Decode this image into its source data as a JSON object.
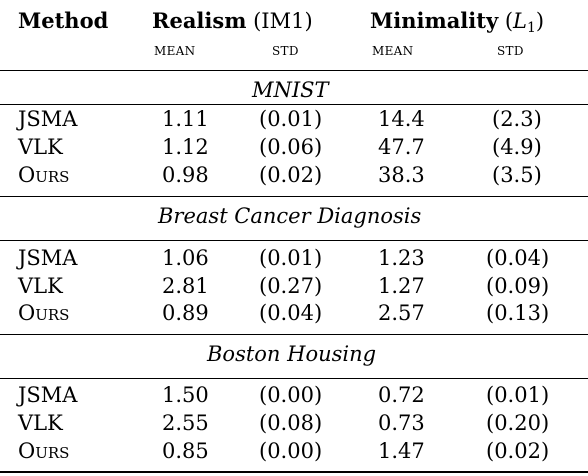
{
  "header": {
    "method": "Method",
    "realism": "Realism",
    "realism_metric": "(IM1)",
    "minimality": "Minimality",
    "minimality_metric_open": "(",
    "minimality_metric_L": "L",
    "minimality_metric_sub": "1",
    "minimality_metric_close": ")",
    "sub": [
      "mean",
      "std",
      "mean",
      "std"
    ]
  },
  "sections": [
    {
      "title": "MNIST",
      "rows": [
        {
          "method": "JSMA",
          "realism_mean": "1.11",
          "realism_std": "(0.01)",
          "min_mean": "14.4",
          "min_std": "(2.3)"
        },
        {
          "method": "VLK",
          "realism_mean": "1.12",
          "realism_std": "(0.06)",
          "min_mean": "47.7",
          "min_std": "(4.9)"
        },
        {
          "method": "Ours",
          "realism_mean": "0.98",
          "realism_std": "(0.02)",
          "min_mean": "38.3",
          "min_std": "(3.5)"
        }
      ]
    },
    {
      "title": "Breast Cancer Diagnosis",
      "rows": [
        {
          "method": "JSMA",
          "realism_mean": "1.06",
          "realism_std": "(0.01)",
          "min_mean": "1.23",
          "min_std": "(0.04)"
        },
        {
          "method": "VLK",
          "realism_mean": "2.81",
          "realism_std": "(0.27)",
          "min_mean": "1.27",
          "min_std": "(0.09)"
        },
        {
          "method": "Ours",
          "realism_mean": "0.89",
          "realism_std": "(0.04)",
          "min_mean": "2.57",
          "min_std": "(0.13)"
        }
      ]
    },
    {
      "title": "Boston Housing",
      "rows": [
        {
          "method": "JSMA",
          "realism_mean": "1.50",
          "realism_std": "(0.00)",
          "min_mean": "0.72",
          "min_std": "(0.01)"
        },
        {
          "method": "VLK",
          "realism_mean": "2.55",
          "realism_std": "(0.08)",
          "min_mean": "0.73",
          "min_std": "(0.20)"
        },
        {
          "method": "Ours",
          "realism_mean": "0.85",
          "realism_std": "(0.00)",
          "min_mean": "1.47",
          "min_std": "(0.02)"
        }
      ]
    }
  ]
}
